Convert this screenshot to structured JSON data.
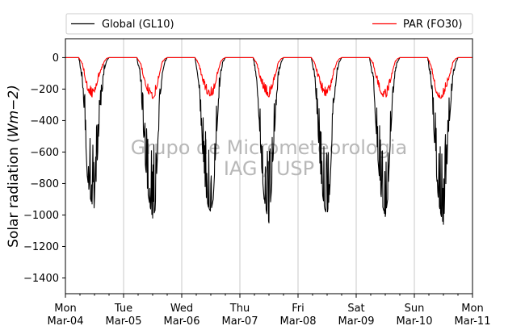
{
  "chart_data": {
    "type": "line",
    "title": "",
    "xlabel": "",
    "ylabel": "Solar radiation (Wm−2)",
    "ylabel_parts": {
      "before": "Solar radiation (",
      "math": "Wm",
      "after": "−2)"
    },
    "ylim": [
      -1500,
      120
    ],
    "yticks": [
      0,
      -200,
      -400,
      -600,
      -800,
      -1000,
      -1200,
      -1400
    ],
    "ytick_labels": [
      "0",
      "−200",
      "−400",
      "−600",
      "−800",
      "−1000",
      "−1200",
      "−1400"
    ],
    "xlim": [
      "2019-03-04",
      "2019-03-11"
    ],
    "xticks": [
      {
        "day": "Mon",
        "date": "Mar-04"
      },
      {
        "day": "Tue",
        "date": "Mar-05"
      },
      {
        "day": "Wed",
        "date": "Mar-06"
      },
      {
        "day": "Thu",
        "date": "Mar-07"
      },
      {
        "day": "Fri",
        "date": "Mar-08"
      },
      {
        "day": "Sat",
        "date": "Mar-09"
      },
      {
        "day": "Sun",
        "date": "Mar-10"
      },
      {
        "day": "Mon",
        "date": "Mar-11"
      }
    ],
    "grid": "x-only",
    "legend": {
      "placement": "top, outside",
      "columns": 2
    },
    "watermark": [
      "Grupo de Micrometeorologia",
      "IAG / USP"
    ],
    "series": [
      {
        "name": "Global (GL10)",
        "color": "#000000",
        "daily_minimum": [
          -960,
          -1020,
          -980,
          -1050,
          -1000,
          -1010,
          -1060
        ],
        "points": [
          [
            "2019-03-04 00:00",
            0
          ],
          [
            "2019-03-04 05:30",
            0
          ],
          [
            "2019-03-04 07:00",
            -150
          ],
          [
            "2019-03-04 08:00",
            -400
          ],
          [
            "2019-03-04 09:00",
            -750
          ],
          [
            "2019-03-04 10:00",
            -880
          ],
          [
            "2019-03-04 11:00",
            -930
          ],
          [
            "2019-03-04 12:00",
            -960
          ],
          [
            "2019-03-04 13:00",
            -700
          ],
          [
            "2019-03-04 14:00",
            -400
          ],
          [
            "2019-03-04 15:00",
            -250
          ],
          [
            "2019-03-04 16:00",
            -80
          ],
          [
            "2019-03-04 17:00",
            -20
          ],
          [
            "2019-03-04 18:00",
            0
          ],
          [
            "2019-03-05 05:30",
            0
          ],
          [
            "2019-03-05 07:00",
            -150
          ],
          [
            "2019-03-05 08:00",
            -420
          ],
          [
            "2019-03-05 09:00",
            -680
          ],
          [
            "2019-03-05 10:00",
            -860
          ],
          [
            "2019-03-05 11:00",
            -950
          ],
          [
            "2019-03-05 12:00",
            -1020
          ],
          [
            "2019-03-05 13:00",
            -970
          ],
          [
            "2019-03-05 14:00",
            -620
          ],
          [
            "2019-03-05 15:00",
            -300
          ],
          [
            "2019-03-05 16:00",
            -100
          ],
          [
            "2019-03-05 17:00",
            -30
          ],
          [
            "2019-03-05 18:00",
            0
          ],
          [
            "2019-03-06 05:30",
            0
          ],
          [
            "2019-03-06 07:00",
            -160
          ],
          [
            "2019-03-06 08:00",
            -430
          ],
          [
            "2019-03-06 09:00",
            -700
          ],
          [
            "2019-03-06 10:00",
            -880
          ],
          [
            "2019-03-06 11:00",
            -950
          ],
          [
            "2019-03-06 12:00",
            -980
          ],
          [
            "2019-03-06 13:00",
            -900
          ],
          [
            "2019-03-06 14:00",
            -600
          ],
          [
            "2019-03-06 15:00",
            -330
          ],
          [
            "2019-03-06 16:00",
            -110
          ],
          [
            "2019-03-06 17:00",
            -30
          ],
          [
            "2019-03-06 18:00",
            0
          ],
          [
            "2019-03-07 05:30",
            0
          ],
          [
            "2019-03-07 07:00",
            -150
          ],
          [
            "2019-03-07 08:00",
            -420
          ],
          [
            "2019-03-07 09:00",
            -700
          ],
          [
            "2019-03-07 10:00",
            -900
          ],
          [
            "2019-03-07 11:00",
            -980
          ],
          [
            "2019-03-07 12:00",
            -1050
          ],
          [
            "2019-03-07 13:00",
            -850
          ],
          [
            "2019-03-07 14:00",
            -550
          ],
          [
            "2019-03-07 15:00",
            -300
          ],
          [
            "2019-03-07 16:00",
            -110
          ],
          [
            "2019-03-07 17:00",
            -30
          ],
          [
            "2019-03-07 18:00",
            0
          ],
          [
            "2019-03-08 05:30",
            0
          ],
          [
            "2019-03-08 07:00",
            -140
          ],
          [
            "2019-03-08 08:00",
            -400
          ],
          [
            "2019-03-08 09:00",
            -680
          ],
          [
            "2019-03-08 10:00",
            -860
          ],
          [
            "2019-03-08 11:00",
            -960
          ],
          [
            "2019-03-08 12:00",
            -1000
          ],
          [
            "2019-03-08 13:00",
            -880
          ],
          [
            "2019-03-08 14:00",
            -520
          ],
          [
            "2019-03-08 15:00",
            -260
          ],
          [
            "2019-03-08 16:00",
            -100
          ],
          [
            "2019-03-08 17:00",
            -30
          ],
          [
            "2019-03-08 18:00",
            0
          ],
          [
            "2019-03-09 05:30",
            0
          ],
          [
            "2019-03-09 07:00",
            -150
          ],
          [
            "2019-03-09 08:00",
            -400
          ],
          [
            "2019-03-09 09:00",
            -650
          ],
          [
            "2019-03-09 10:00",
            -850
          ],
          [
            "2019-03-09 11:00",
            -950
          ],
          [
            "2019-03-09 12:00",
            -1010
          ],
          [
            "2019-03-09 13:00",
            -900
          ],
          [
            "2019-03-09 14:00",
            -560
          ],
          [
            "2019-03-09 15:00",
            -280
          ],
          [
            "2019-03-09 16:00",
            -100
          ],
          [
            "2019-03-09 17:00",
            -30
          ],
          [
            "2019-03-09 18:00",
            0
          ],
          [
            "2019-03-10 05:30",
            0
          ],
          [
            "2019-03-10 07:00",
            -180
          ],
          [
            "2019-03-10 08:00",
            -450
          ],
          [
            "2019-03-10 09:00",
            -720
          ],
          [
            "2019-03-10 10:00",
            -920
          ],
          [
            "2019-03-10 11:00",
            -1000
          ],
          [
            "2019-03-10 12:00",
            -1060
          ],
          [
            "2019-03-10 13:00",
            -850
          ],
          [
            "2019-03-10 14:00",
            -500
          ],
          [
            "2019-03-10 15:00",
            -300
          ],
          [
            "2019-03-10 16:00",
            -120
          ],
          [
            "2019-03-10 17:00",
            -40
          ],
          [
            "2019-03-10 18:00",
            0
          ],
          [
            "2019-03-11 00:00",
            0
          ]
        ]
      },
      {
        "name": "PAR (FO30)",
        "color": "#ff0000",
        "daily_minimum": [
          -250,
          -260,
          -245,
          -250,
          -245,
          -260,
          -260
        ],
        "points": [
          [
            "2019-03-04 00:00",
            0
          ],
          [
            "2019-03-04 05:30",
            0
          ],
          [
            "2019-03-04 07:00",
            -40
          ],
          [
            "2019-03-04 08:00",
            -120
          ],
          [
            "2019-03-04 09:00",
            -200
          ],
          [
            "2019-03-04 10:00",
            -230
          ],
          [
            "2019-03-04 11:00",
            -250
          ],
          [
            "2019-03-04 12:00",
            -220
          ],
          [
            "2019-03-04 13:00",
            -170
          ],
          [
            "2019-03-04 14:00",
            -110
          ],
          [
            "2019-03-04 15:00",
            -70
          ],
          [
            "2019-03-04 16:00",
            -25
          ],
          [
            "2019-03-04 17:00",
            -5
          ],
          [
            "2019-03-04 18:00",
            0
          ],
          [
            "2019-03-05 05:30",
            0
          ],
          [
            "2019-03-05 07:00",
            -40
          ],
          [
            "2019-03-05 08:00",
            -110
          ],
          [
            "2019-03-05 09:00",
            -170
          ],
          [
            "2019-03-05 10:00",
            -220
          ],
          [
            "2019-03-05 11:00",
            -245
          ],
          [
            "2019-03-05 12:00",
            -260
          ],
          [
            "2019-03-05 13:00",
            -240
          ],
          [
            "2019-03-05 14:00",
            -170
          ],
          [
            "2019-03-05 15:00",
            -90
          ],
          [
            "2019-03-05 16:00",
            -30
          ],
          [
            "2019-03-05 17:00",
            -8
          ],
          [
            "2019-03-05 18:00",
            0
          ],
          [
            "2019-03-06 05:30",
            0
          ],
          [
            "2019-03-06 07:00",
            -40
          ],
          [
            "2019-03-06 08:00",
            -110
          ],
          [
            "2019-03-06 09:00",
            -170
          ],
          [
            "2019-03-06 10:00",
            -220
          ],
          [
            "2019-03-06 11:00",
            -240
          ],
          [
            "2019-03-06 12:00",
            -245
          ],
          [
            "2019-03-06 13:00",
            -230
          ],
          [
            "2019-03-06 14:00",
            -160
          ],
          [
            "2019-03-06 15:00",
            -90
          ],
          [
            "2019-03-06 16:00",
            -30
          ],
          [
            "2019-03-06 17:00",
            -8
          ],
          [
            "2019-03-06 18:00",
            0
          ],
          [
            "2019-03-07 05:30",
            0
          ],
          [
            "2019-03-07 07:00",
            -40
          ],
          [
            "2019-03-07 08:00",
            -110
          ],
          [
            "2019-03-07 09:00",
            -170
          ],
          [
            "2019-03-07 10:00",
            -210
          ],
          [
            "2019-03-07 11:00",
            -235
          ],
          [
            "2019-03-07 12:00",
            -250
          ],
          [
            "2019-03-07 13:00",
            -210
          ],
          [
            "2019-03-07 14:00",
            -150
          ],
          [
            "2019-03-07 15:00",
            -90
          ],
          [
            "2019-03-07 16:00",
            -30
          ],
          [
            "2019-03-07 17:00",
            -8
          ],
          [
            "2019-03-07 18:00",
            0
          ],
          [
            "2019-03-08 05:30",
            0
          ],
          [
            "2019-03-08 07:00",
            -40
          ],
          [
            "2019-03-08 08:00",
            -110
          ],
          [
            "2019-03-08 09:00",
            -170
          ],
          [
            "2019-03-08 10:00",
            -215
          ],
          [
            "2019-03-08 11:00",
            -240
          ],
          [
            "2019-03-08 12:00",
            -245
          ],
          [
            "2019-03-08 13:00",
            -220
          ],
          [
            "2019-03-08 14:00",
            -150
          ],
          [
            "2019-03-08 15:00",
            -80
          ],
          [
            "2019-03-08 16:00",
            -30
          ],
          [
            "2019-03-08 17:00",
            -8
          ],
          [
            "2019-03-08 18:00",
            0
          ],
          [
            "2019-03-09 05:30",
            0
          ],
          [
            "2019-03-09 07:00",
            -40
          ],
          [
            "2019-03-09 08:00",
            -110
          ],
          [
            "2019-03-09 09:00",
            -170
          ],
          [
            "2019-03-09 10:00",
            -220
          ],
          [
            "2019-03-09 11:00",
            -245
          ],
          [
            "2019-03-09 12:00",
            -260
          ],
          [
            "2019-03-09 13:00",
            -230
          ],
          [
            "2019-03-09 14:00",
            -160
          ],
          [
            "2019-03-09 15:00",
            -90
          ],
          [
            "2019-03-09 16:00",
            -30
          ],
          [
            "2019-03-09 17:00",
            -8
          ],
          [
            "2019-03-09 18:00",
            0
          ],
          [
            "2019-03-10 05:30",
            0
          ],
          [
            "2019-03-10 07:00",
            -60
          ],
          [
            "2019-03-10 08:00",
            -150
          ],
          [
            "2019-03-10 09:00",
            -220
          ],
          [
            "2019-03-10 10:00",
            -250
          ],
          [
            "2019-03-10 11:00",
            -260
          ],
          [
            "2019-03-10 12:00",
            -240
          ],
          [
            "2019-03-10 13:00",
            -200
          ],
          [
            "2019-03-10 14:00",
            -150
          ],
          [
            "2019-03-10 15:00",
            -90
          ],
          [
            "2019-03-10 16:00",
            -30
          ],
          [
            "2019-03-10 17:00",
            -8
          ],
          [
            "2019-03-10 18:00",
            0
          ],
          [
            "2019-03-11 00:00",
            0
          ]
        ]
      }
    ]
  }
}
